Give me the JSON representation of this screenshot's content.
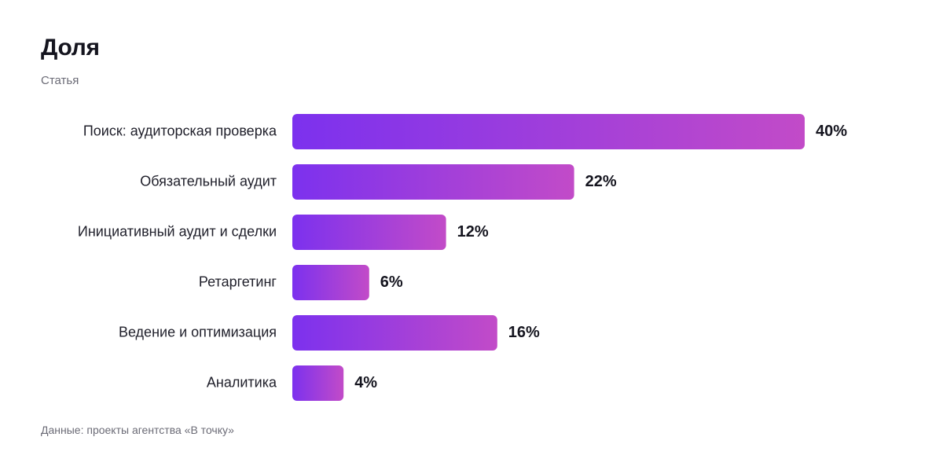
{
  "title": "Доля",
  "subtitle": "Статья",
  "source": "Данные: проекты агентства «В точку»",
  "colors": {
    "bar_start": "#7c31ee",
    "bar_end": "#c24bc8"
  },
  "chart_data": {
    "type": "bar",
    "orientation": "horizontal",
    "title": "Доля",
    "subtitle": "Статья",
    "unit": "%",
    "categories": [
      "Поиск: аудиторская проверка",
      "Обязательный аудит",
      "Инициативный аудит и сделки",
      "Ретаргетинг",
      "Ведение и оптимизация",
      "Аналитика"
    ],
    "values": [
      40,
      22,
      12,
      6,
      16,
      4
    ],
    "value_labels": [
      "40%",
      "22%",
      "12%",
      "6%",
      "16%",
      "4%"
    ],
    "xlim": [
      0,
      40
    ],
    "grid": false,
    "legend": "none"
  }
}
